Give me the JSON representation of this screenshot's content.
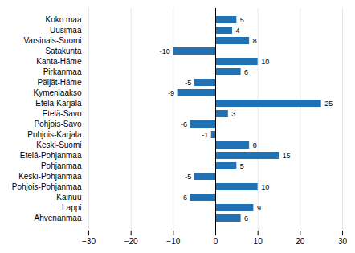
{
  "chart_data": {
    "type": "bar",
    "orientation": "horizontal",
    "categories": [
      "Koko maa",
      "Uusimaa",
      "Varsinais-Suomi",
      "Satakunta",
      "Kanta-Häme",
      "Pirkanmaa",
      "Päijät-Häme",
      "Kymenlaakso",
      "Etelä-Karjala",
      "Etelä-Savo",
      "Pohjois-Savo",
      "Pohjois-Karjala",
      "Keski-Suomi",
      "Etelä-Pohjanmaa",
      "Pohjanmaa",
      "Keski-Pohjanmaa",
      "Pohjois-Pohjanmaa",
      "Kainuu",
      "Lappi",
      "Ahvenanmaa"
    ],
    "values": [
      5,
      4,
      8,
      -10,
      10,
      6,
      -5,
      -9,
      25,
      3,
      -6,
      -1,
      8,
      15,
      5,
      -5,
      10,
      -6,
      9,
      6
    ],
    "color": "#2171b5",
    "xlim": [
      -30,
      30
    ],
    "xticks": [
      -30,
      -20,
      -10,
      0,
      10,
      20,
      30
    ],
    "grid": true,
    "data_labels": true
  }
}
